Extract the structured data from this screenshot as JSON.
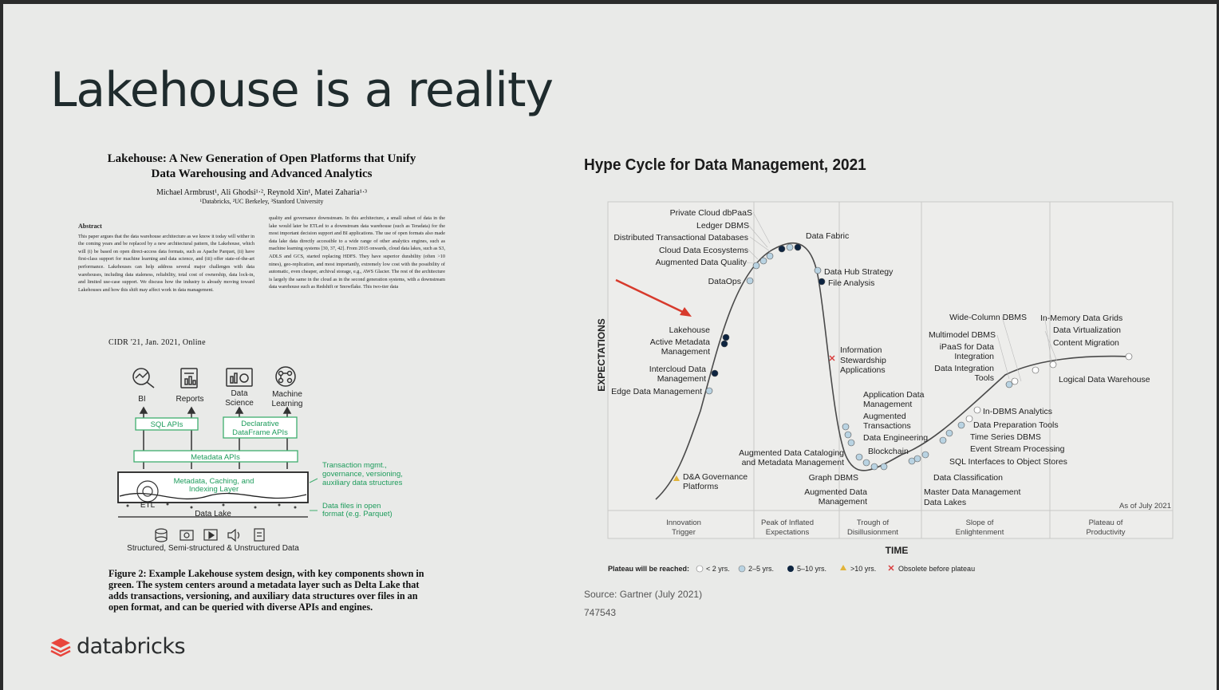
{
  "slide": {
    "title": "Lakehouse is a reality",
    "brand": "databricks"
  },
  "paper": {
    "title_line1": "Lakehouse: A New Generation of Open Platforms that Unify",
    "title_line2": "Data Warehousing and Advanced Analytics",
    "authors": "Michael Armbrust¹, Ali Ghodsi¹·², Reynold Xin¹, Matei Zaharia¹·³",
    "affiliations": "¹Databricks, ²UC Berkeley, ³Stanford University",
    "abstract_heading": "Abstract",
    "abstract_text": "This paper argues that the data warehouse architecture as we know it today will wither in the coming years and be replaced by a new architectural pattern, the Lakehouse, which will (i) be based on open direct-access data formats, such as Apache Parquet, (ii) have first-class support for machine learning and data science, and (iii) offer state-of-the-art performance. Lakehouses can help address several major challenges with data warehouses, including data staleness, reliability, total cost of ownership, data lock-in, and limited use-case support. We discuss how the industry is already moving toward Lakehouses and how this shift may affect work in data management.",
    "right_col_text": "quality and governance downstream. In this architecture, a small subset of data in the lake would later be ETLed to a downstream data warehouse (such as Teradata) for the most important decision support and BI applications. The use of open formats also made data lake data directly accessible to a wide range of other analytics engines, such as machine learning systems [30, 37, 42]. From 2015 onwards, cloud data lakes, such as S3, ADLS and GCS, started replacing HDFS. They have superior durability (often >10 nines), geo-replication, and most importantly, extremely low cost with the possibility of automatic, even cheaper, archival storage, e.g., AWS Glacier. The rest of the architecture is largely the same in the cloud as in the second generation systems, with a downstream data warehouse such as Redshift or Snowflake. This two-tier data",
    "venue": "CIDR '21, Jan. 2021, Online",
    "caption": "Figure 2: Example Lakehouse system design, with key components shown in green. The system centers around a metadata layer such as Delta Lake that adds transactions, versioning, and auxiliary data structures over files in an open format, and can be queried with diverse APIs and engines."
  },
  "diagram": {
    "consumers": [
      "BI",
      "Reports",
      "Data",
      "Science",
      "Machine",
      "Learning"
    ],
    "sql_apis": "SQL APIs",
    "df_apis_1": "Declarative",
    "df_apis_2": "DataFrame APIs",
    "metadata_apis": "Metadata APIs",
    "layer_1": "Metadata, Caching, and",
    "layer_2": "Indexing Layer",
    "etl": "ETL",
    "data_lake": "Data Lake",
    "note1_1": "Transaction mgmt.,",
    "note1_2": "governance, versioning,",
    "note1_3": "auxiliary data structures",
    "note2_1": "Data files in open",
    "note2_2": "format (e.g. Parquet)",
    "bottom": "Structured, Semi-structured & Unstructured Data"
  },
  "hype": {
    "title": "Hype Cycle for Data Management, 2021",
    "y_axis": "EXPECTATIONS",
    "x_axis": "TIME",
    "as_of": "As of July 2021",
    "phases": [
      [
        "Innovation",
        "Trigger"
      ],
      [
        "Peak of Inflated",
        "Expectations"
      ],
      [
        "Trough of",
        "Disillusionment"
      ],
      [
        "Slope of",
        "Enlightenment"
      ],
      [
        "Plateau of",
        "Productivity"
      ]
    ],
    "legend_label": "Plateau will be reached:",
    "legend": [
      "< 2 yrs.",
      "2–5 yrs.",
      "5–10 yrs.",
      ">10 yrs.",
      "Obsolete before plateau"
    ],
    "legend_colors": [
      "#ffffff",
      "#b9d3e2",
      "#0d2440",
      "#e2b43a",
      "#d93b3b"
    ],
    "source": "Source: Gartner (July 2021)",
    "code": "747543",
    "labels": {
      "private_cloud": "Private Cloud dbPaaS",
      "ledger": "Ledger DBMS",
      "dist_tx": "Distributed Transactional Databases",
      "cloud_eco": "Cloud Data Ecosystems",
      "aug_quality": "Augmented Data Quality",
      "dataops": "DataOps",
      "data_fabric": "Data Fabric",
      "hub": "Data Hub Strategy",
      "file_analysis": "File Analysis",
      "lakehouse": "Lakehouse",
      "active_meta_1": "Active Metadata",
      "active_meta_2": "Management",
      "intercloud_1": "Intercloud Data",
      "intercloud_2": "Management",
      "edge": "Edge Data Management",
      "dna_1": "D&A Governance",
      "dna_2": "Platforms",
      "info_1": "Information",
      "info_2": "Stewardship",
      "info_3": "Applications",
      "app_1": "Application Data",
      "app_2": "Management",
      "aug_tx_1": "Augmented",
      "aug_tx_2": "Transactions",
      "data_eng": "Data Engineering",
      "blockchain": "Blockchain",
      "catalog_1": "Augmented Data Cataloging",
      "catalog_2": "and Metadata Management",
      "graph": "Graph DBMS",
      "aug_mgmt_1": "Augmented Data",
      "aug_mgmt_2": "Management",
      "wide_col": "Wide-Column DBMS",
      "multimodel": "Multimodel DBMS",
      "ipaas_1": "iPaaS for Data",
      "ipaas_2": "Integration",
      "dit_1": "Data Integration",
      "dit_2": "Tools",
      "inmem": "In-Memory Data Grids",
      "virt": "Data Virtualization",
      "cmig": "Content Migration",
      "ldw": "Logical Data Warehouse",
      "indbms": "In-DBMS Analytics",
      "prep": "Data Preparation Tools",
      "ts": "Time Series DBMS",
      "esp": "Event Stream Processing",
      "sqli": "SQL Interfaces to Object Stores",
      "dclass": "Data Classification",
      "mdm": "Master Data Management",
      "lakes": "Data Lakes"
    }
  }
}
